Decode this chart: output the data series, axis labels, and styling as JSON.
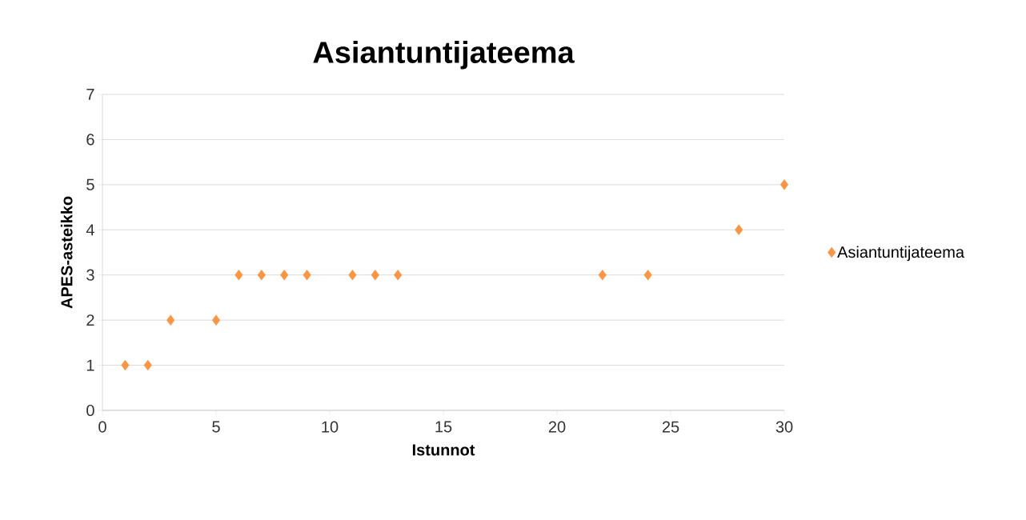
{
  "chart_data": {
    "type": "scatter",
    "title": "Asiantuntijateema",
    "xlabel": "Istunnot",
    "ylabel": "APES-asteikko",
    "x": [
      1,
      2,
      3,
      5,
      6,
      7,
      8,
      9,
      11,
      12,
      13,
      22,
      24,
      28,
      30
    ],
    "series": [
      {
        "name": "Asiantuntijateema",
        "color": "#f79646",
        "values": [
          1,
          1,
          2,
          2,
          3,
          3,
          3,
          3,
          3,
          3,
          3,
          3,
          3,
          4,
          5
        ]
      }
    ],
    "xlim": [
      0,
      30
    ],
    "ylim": [
      0,
      7
    ],
    "xticks": [
      0,
      5,
      10,
      15,
      20,
      25,
      30
    ],
    "yticks": [
      0,
      1,
      2,
      3,
      4,
      5,
      6,
      7
    ],
    "grid": "y",
    "legend": "right",
    "marker": "diamond"
  }
}
